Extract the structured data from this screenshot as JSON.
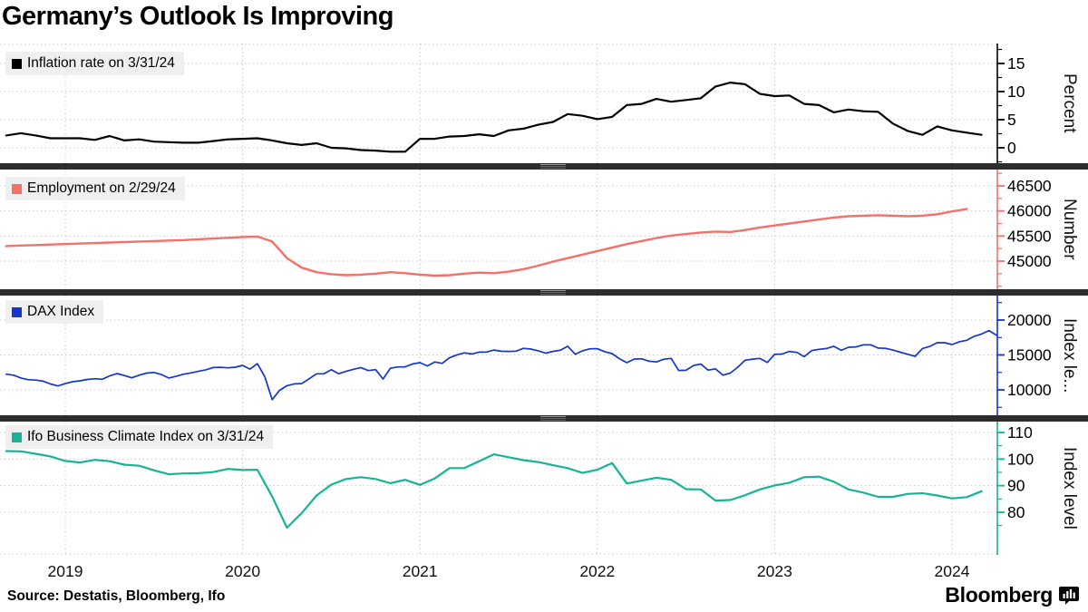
{
  "title": "Germany’s Outlook Is Improving",
  "source_label": "Source: Destatis, Bloomberg, Ifo",
  "footer": {
    "brand": "Bloomberg",
    "brand_icon": "bloomberg-chart-bubble-icon"
  },
  "colors": {
    "grid": "#c9c9c9",
    "divider": "#2d2d2d",
    "legend_bg": "#efefef"
  },
  "x_axis": {
    "years": [
      "2019",
      "2020",
      "2021",
      "2022",
      "2023",
      "2024"
    ]
  },
  "chart_data": [
    {
      "type": "line",
      "id": "inflation",
      "legend": "Inflation rate on 3/31/24",
      "color": "#000000",
      "axis_title": "Percent",
      "yticks": [
        0,
        5,
        10,
        15
      ],
      "yticks_minor": [
        -2.5,
        2.5,
        7.5,
        12.5,
        17.5
      ],
      "series": {
        "start": "2018-09",
        "points_per_month": 1,
        "values": [
          2.2,
          2.6,
          2.2,
          1.7,
          1.7,
          1.7,
          1.4,
          2.1,
          1.3,
          1.5,
          1.1,
          1.0,
          0.9,
          0.9,
          1.2,
          1.5,
          1.6,
          1.7,
          1.3,
          0.8,
          0.5,
          0.8,
          0.0,
          -0.1,
          -0.4,
          -0.5,
          -0.7,
          -0.7,
          1.6,
          1.6,
          2.0,
          2.1,
          2.4,
          2.1,
          3.1,
          3.4,
          4.1,
          4.6,
          6.0,
          5.7,
          5.1,
          5.5,
          7.6,
          7.8,
          8.7,
          8.2,
          8.5,
          8.8,
          10.9,
          11.6,
          11.3,
          9.6,
          9.2,
          9.3,
          7.8,
          7.6,
          6.3,
          6.8,
          6.5,
          6.4,
          4.3,
          3.0,
          2.3,
          3.8,
          3.1,
          2.7,
          2.3
        ]
      }
    },
    {
      "type": "line",
      "id": "employment",
      "legend": "Employment on 2/29/24",
      "color": "#f5706a",
      "axis_title": "Number",
      "yticks": [
        45000,
        45500,
        46000,
        46500
      ],
      "yticks_minor": [
        44500,
        44750,
        45250,
        45750,
        46250,
        46750
      ],
      "series": {
        "start": "2018-09",
        "points_per_month": 1,
        "values": [
          45300,
          45310,
          45320,
          45330,
          45340,
          45350,
          45360,
          45370,
          45380,
          45390,
          45400,
          45410,
          45420,
          45435,
          45450,
          45465,
          45480,
          45490,
          45390,
          45060,
          44870,
          44780,
          44740,
          44720,
          44730,
          44750,
          44780,
          44760,
          44730,
          44710,
          44720,
          44750,
          44770,
          44760,
          44790,
          44840,
          44910,
          44990,
          45060,
          45130,
          45200,
          45270,
          45340,
          45400,
          45460,
          45510,
          45540,
          45570,
          45590,
          45580,
          45620,
          45670,
          45710,
          45750,
          45790,
          45830,
          45870,
          45895,
          45905,
          45915,
          45905,
          45895,
          45905,
          45935,
          45990,
          46040
        ]
      }
    },
    {
      "type": "line",
      "id": "dax",
      "legend": "DAX Index",
      "color": "#1535cf",
      "axis_title": "Index le...",
      "yticks": [
        10000,
        15000,
        20000
      ],
      "yticks_minor": [
        7500,
        12500,
        17500,
        22500
      ],
      "series": {
        "start": "2018-09",
        "points_per_month": 2,
        "values": [
          12250,
          12100,
          11700,
          11450,
          11400,
          11250,
          10850,
          10560,
          10900,
          11170,
          11300,
          11500,
          11600,
          11520,
          12000,
          12340,
          12050,
          11730,
          12100,
          12400,
          12500,
          12190,
          11700,
          11940,
          12250,
          12430,
          12650,
          12870,
          13200,
          13240,
          13150,
          13250,
          13500,
          12980,
          13750,
          11890,
          8600,
          9940,
          10600,
          10860,
          10900,
          11590,
          12300,
          12310,
          12900,
          12310,
          12650,
          12950,
          13200,
          12760,
          12900,
          11560,
          13100,
          13290,
          13300,
          13720,
          13900,
          13430,
          14000,
          13790,
          14600,
          15010,
          15300,
          15140,
          15400,
          15420,
          15700,
          15530,
          15500,
          15540,
          15950,
          15840,
          15600,
          15260,
          15500,
          15690,
          16250,
          15100,
          15600,
          15880,
          15900,
          15470,
          15200,
          14460,
          13900,
          14410,
          14450,
          14100,
          14000,
          14390,
          14500,
          12780,
          12800,
          13480,
          13700,
          12830,
          13000,
          12110,
          12400,
          13250,
          14250,
          14400,
          14500,
          13920,
          15090,
          15130,
          15500,
          15370,
          14750,
          15630,
          15800,
          15920,
          16250,
          15660,
          16100,
          16150,
          16450,
          16450,
          15990,
          15950,
          15700,
          15390,
          15100,
          14810,
          15920,
          16220,
          16750,
          16750,
          16500,
          16900,
          17100,
          17680,
          18000,
          18490,
          17850
        ]
      }
    },
    {
      "type": "line",
      "id": "ifo",
      "legend": "Ifo Business Climate Index on 3/31/24",
      "color": "#16b496",
      "axis_title": "Index level",
      "yticks": [
        80,
        90,
        100,
        110
      ],
      "yticks_minor": [
        75,
        85,
        95,
        105
      ],
      "series": {
        "start": "2018-09",
        "points_per_month": 1,
        "values": [
          103.0,
          102.9,
          102.0,
          101.0,
          99.3,
          98.7,
          99.7,
          99.2,
          97.9,
          97.5,
          95.8,
          94.3,
          94.6,
          94.7,
          95.1,
          96.3,
          95.9,
          96.0,
          85.9,
          74.2,
          79.7,
          86.3,
          90.4,
          92.5,
          93.2,
          92.5,
          90.9,
          92.2,
          90.3,
          92.7,
          96.6,
          96.6,
          99.2,
          101.8,
          100.7,
          99.6,
          98.9,
          97.7,
          96.6,
          94.8,
          96.0,
          98.5,
          90.8,
          91.9,
          93.0,
          92.2,
          88.7,
          88.6,
          84.4,
          84.6,
          86.4,
          88.6,
          90.1,
          91.1,
          93.2,
          93.4,
          91.5,
          88.6,
          87.4,
          85.8,
          85.8,
          86.9,
          87.2,
          86.3,
          85.2,
          85.7,
          87.9
        ]
      }
    }
  ]
}
